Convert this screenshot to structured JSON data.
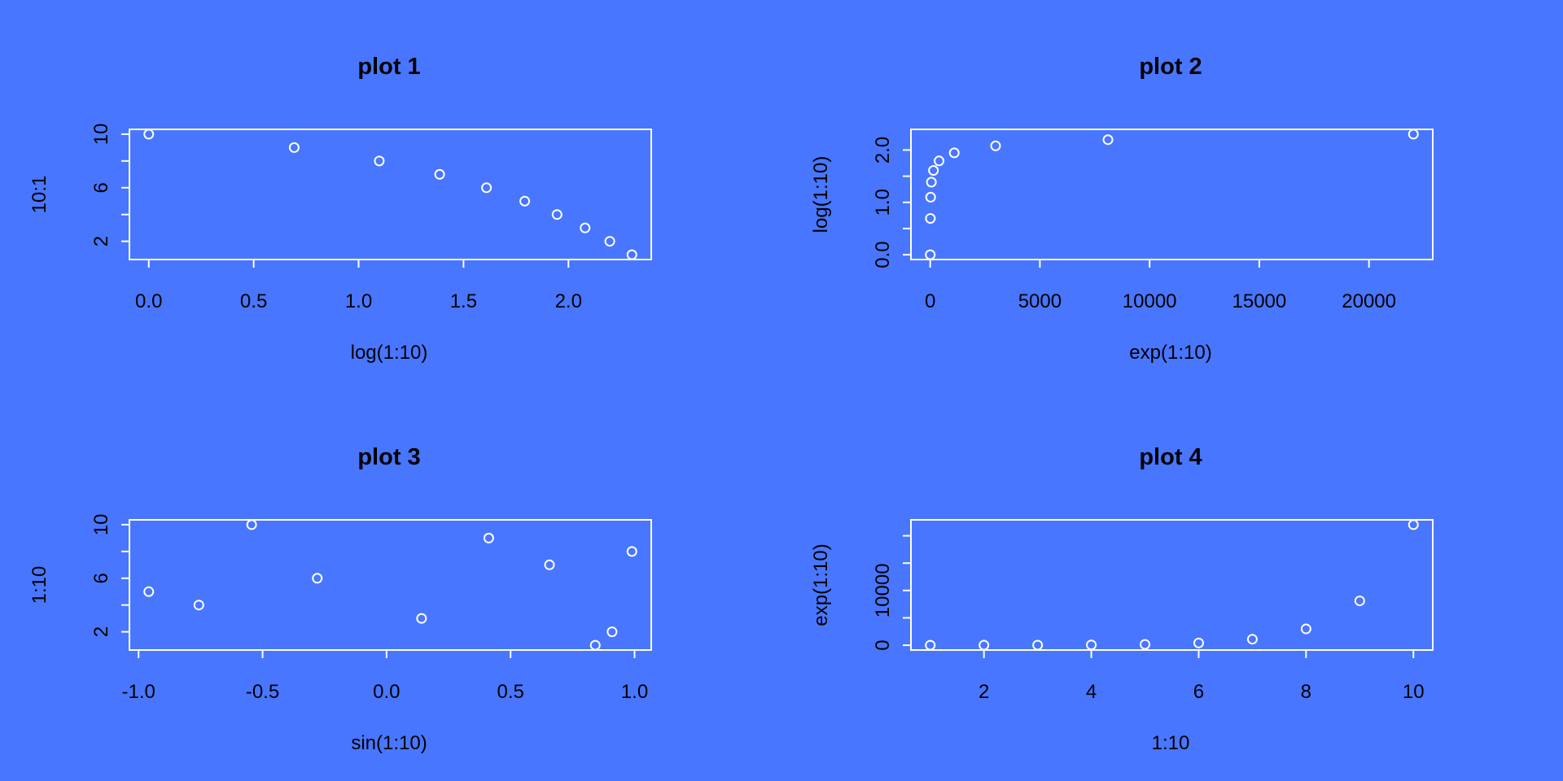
{
  "chart_data": [
    {
      "type": "scatter",
      "title": "plot 1",
      "xlabel": "log(1:10)",
      "ylabel": "10:1",
      "xlim": [
        0,
        2.302585
      ],
      "ylim": [
        1,
        10
      ],
      "x_ticks": [
        0,
        0.5,
        1,
        1.5,
        2
      ],
      "x_tick_labels": [
        "0.0",
        "0.5",
        "1.0",
        "1.5",
        "2.0"
      ],
      "y_ticks": [
        2,
        4,
        6,
        8,
        10
      ],
      "y_tick_labels": [
        "2",
        "",
        "6",
        "",
        "10"
      ],
      "x": [
        0,
        0.6931,
        1.0986,
        1.3863,
        1.6094,
        1.7918,
        1.9459,
        2.0794,
        2.1972,
        2.3026
      ],
      "y": [
        10,
        9,
        8,
        7,
        6,
        5,
        4,
        3,
        2,
        1
      ],
      "grid": false,
      "marker": "open-circle",
      "point_color": "#FFFFFF",
      "box_color": "#FFFFFF"
    },
    {
      "type": "scatter",
      "title": "plot 2",
      "xlabel": "exp(1:10)",
      "ylabel": "log(1:10)",
      "xlim": [
        2.718,
        22026.47
      ],
      "ylim": [
        0,
        2.302585
      ],
      "x_ticks": [
        0,
        5000,
        10000,
        15000,
        20000
      ],
      "x_tick_labels": [
        "0",
        "5000",
        "10000",
        "15000",
        "20000"
      ],
      "y_ticks": [
        0,
        0.5,
        1,
        1.5,
        2
      ],
      "y_tick_labels": [
        "0.0",
        "",
        "1.0",
        "",
        "2.0"
      ],
      "x": [
        2.718,
        7.389,
        20.09,
        54.6,
        148.4,
        403.4,
        1096.6,
        2981,
        8103.1,
        22026.5
      ],
      "y": [
        0,
        0.6931,
        1.0986,
        1.3863,
        1.6094,
        1.7918,
        1.9459,
        2.0794,
        2.1972,
        2.3026
      ],
      "grid": false,
      "marker": "open-circle",
      "point_color": "#FFFFFF",
      "box_color": "#FFFFFF"
    },
    {
      "type": "scatter",
      "title": "plot 3",
      "xlabel": "sin(1:10)",
      "ylabel": "1:10",
      "xlim": [
        -0.9589,
        0.9894
      ],
      "ylim": [
        1,
        10
      ],
      "x_ticks": [
        -1,
        -0.5,
        0,
        0.5,
        1
      ],
      "x_tick_labels": [
        "-1.0",
        "-0.5",
        "0.0",
        "0.5",
        "1.0"
      ],
      "y_ticks": [
        2,
        4,
        6,
        8,
        10
      ],
      "y_tick_labels": [
        "2",
        "",
        "6",
        "",
        "10"
      ],
      "x": [
        0.8415,
        0.9093,
        0.1411,
        -0.7568,
        -0.9589,
        -0.2794,
        0.657,
        0.9894,
        0.4121,
        -0.544
      ],
      "y": [
        1,
        2,
        3,
        4,
        5,
        6,
        7,
        8,
        9,
        10
      ],
      "grid": false,
      "marker": "open-circle",
      "point_color": "#FFFFFF",
      "box_color": "#FFFFFF"
    },
    {
      "type": "scatter",
      "title": "plot 4",
      "xlabel": "1:10",
      "ylabel": "exp(1:10)",
      "xlim": [
        1,
        10
      ],
      "ylim": [
        2.718,
        22026.47
      ],
      "x_ticks": [
        2,
        4,
        6,
        8,
        10
      ],
      "x_tick_labels": [
        "2",
        "4",
        "6",
        "8",
        "10"
      ],
      "y_ticks": [
        0,
        5000,
        10000,
        15000,
        20000
      ],
      "y_tick_labels": [
        "0",
        "",
        "10000",
        "",
        ""
      ],
      "x": [
        1,
        2,
        3,
        4,
        5,
        6,
        7,
        8,
        9,
        10
      ],
      "y": [
        2.718,
        7.389,
        20.09,
        54.6,
        148.4,
        403.4,
        1096.6,
        2981,
        8103.1,
        22026.5
      ],
      "grid": false,
      "marker": "open-circle",
      "point_color": "#FFFFFF",
      "box_color": "#FFFFFF"
    }
  ]
}
